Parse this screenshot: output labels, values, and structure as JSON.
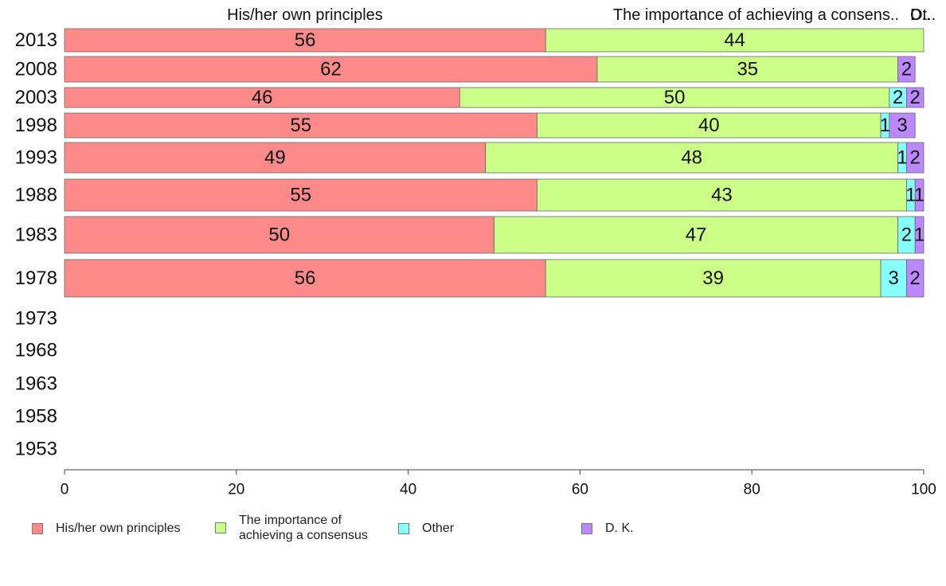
{
  "chart_data": {
    "type": "bar",
    "orientation": "horizontal",
    "stacked": true,
    "categories": [
      "2013",
      "2008",
      "2003",
      "1998",
      "1993",
      "1988",
      "1983",
      "1978",
      "1973",
      "1968",
      "1963",
      "1958",
      "1953"
    ],
    "series": [
      {
        "name": "His/her own principles",
        "color": "#ff8a8a",
        "values": [
          56,
          62,
          46,
          55,
          49,
          55,
          50,
          56,
          null,
          null,
          null,
          null,
          null
        ]
      },
      {
        "name": "The importance of achieving a consensus",
        "color": "#ccff88",
        "values": [
          44,
          35,
          50,
          40,
          48,
          43,
          47,
          39,
          null,
          null,
          null,
          null,
          null
        ]
      },
      {
        "name": "Other",
        "color": "#88ffff",
        "values": [
          0,
          0,
          2,
          1,
          1,
          1,
          2,
          3,
          null,
          null,
          null,
          null,
          null
        ]
      },
      {
        "name": "D. K.",
        "color": "#bb88ff",
        "values": [
          0,
          2,
          2,
          3,
          2,
          1,
          1,
          2,
          null,
          null,
          null,
          null,
          null
        ]
      }
    ],
    "top_labels": [
      "His/her own principles",
      "The importance of achieving a consens..",
      "Ot..",
      "D.."
    ],
    "xlim": [
      0,
      100
    ],
    "xticks": [
      0,
      20,
      40,
      60,
      80,
      100
    ],
    "legend_position": "bottom",
    "legend_labels": [
      "His/her own principles",
      "The importance of\nachieving a consensus",
      "Other",
      "D. K."
    ],
    "grid": false
  }
}
